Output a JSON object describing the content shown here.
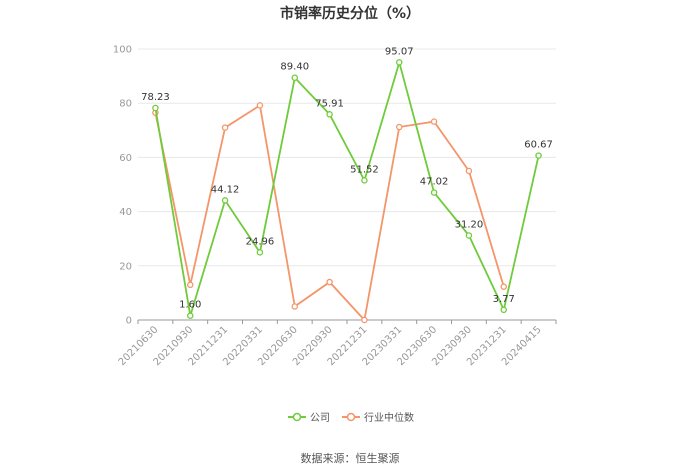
{
  "chart_data": {
    "type": "line",
    "title": "市销率历史分位（%）",
    "categories": [
      "20210630",
      "20210930",
      "20211231",
      "20220331",
      "20220630",
      "20220930",
      "20221231",
      "20230331",
      "20230630",
      "20230930",
      "20231231",
      "20240415"
    ],
    "ylim": [
      0,
      100
    ],
    "yticks": [
      "0",
      "20",
      "40",
      "60",
      "80",
      "100"
    ],
    "grid": true,
    "legend_position": "bottom",
    "series": [
      {
        "name": "公司",
        "color": "#6fcb3a",
        "values": [
          78.23,
          1.6,
          44.12,
          24.96,
          89.4,
          75.91,
          51.52,
          95.07,
          47.02,
          31.2,
          3.77,
          60.67
        ],
        "labels": [
          "78.23",
          "1.60",
          "44.12",
          "24.96",
          "89.40",
          "75.91",
          "51.52",
          "95.07",
          "47.02",
          "31.20",
          "3.77",
          "60.67"
        ]
      },
      {
        "name": "行业中位数",
        "color": "#f4956a",
        "values": [
          76.5,
          13.0,
          71.0,
          79.2,
          5.0,
          14.0,
          0.0,
          71.2,
          73.2,
          55.0,
          12.3,
          null
        ]
      }
    ],
    "source": "数据来源：恒生聚源"
  }
}
